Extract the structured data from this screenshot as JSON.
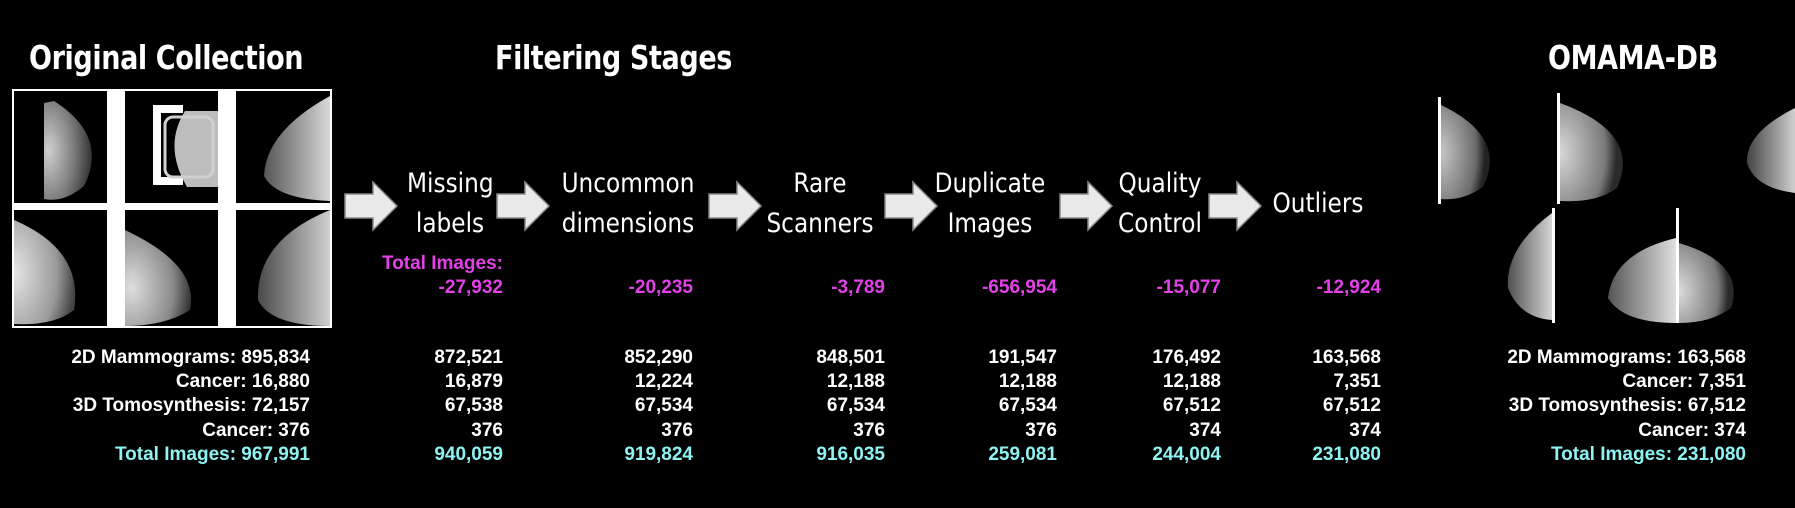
{
  "titles": {
    "original": "Original Collection",
    "filtering": "Filtering Stages",
    "omama": "OMAMA-DB"
  },
  "stages": [
    {
      "label": "Missing\nlabels",
      "removed": "-27,932"
    },
    {
      "label": "Uncommon\ndimensions",
      "removed": "-20,235"
    },
    {
      "label": "Rare\nScanners",
      "removed": "-3,789"
    },
    {
      "label": "Duplicate\nImages",
      "removed": "-656,954"
    },
    {
      "label": "Quality\nControl",
      "removed": "-15,077"
    },
    {
      "label": "Outliers",
      "removed": "-12,924"
    }
  ],
  "removed_header": "Total Images:",
  "original_stats": [
    "2D Mammograms: 895,834",
    "Cancer: 16,880",
    "3D Tomosynthesis: 72,157",
    "Cancer: 376",
    "Total Images: 967,991"
  ],
  "stage_stats": [
    [
      "872,521",
      "16,879",
      "67,538",
      "376",
      "940,059"
    ],
    [
      "852,290",
      "12,224",
      "67,534",
      "376",
      "919,824"
    ],
    [
      "848,501",
      "12,188",
      "67,534",
      "376",
      "916,035"
    ],
    [
      "191,547",
      "12,188",
      "67,534",
      "376",
      "259,081"
    ],
    [
      "176,492",
      "12,188",
      "67,512",
      "374",
      "244,004"
    ],
    [
      "163,568",
      "7,351",
      "67,512",
      "374",
      "231,080"
    ]
  ],
  "final_stats": [
    "2D Mammograms: 163,568",
    "Cancer: 7,351",
    "3D Tomosynthesis: 67,512",
    "Cancer: 374",
    "Total Images: 231,080"
  ],
  "colors": {
    "background": "#000000",
    "removed": "#e341e8",
    "total": "#8ef3f3"
  }
}
